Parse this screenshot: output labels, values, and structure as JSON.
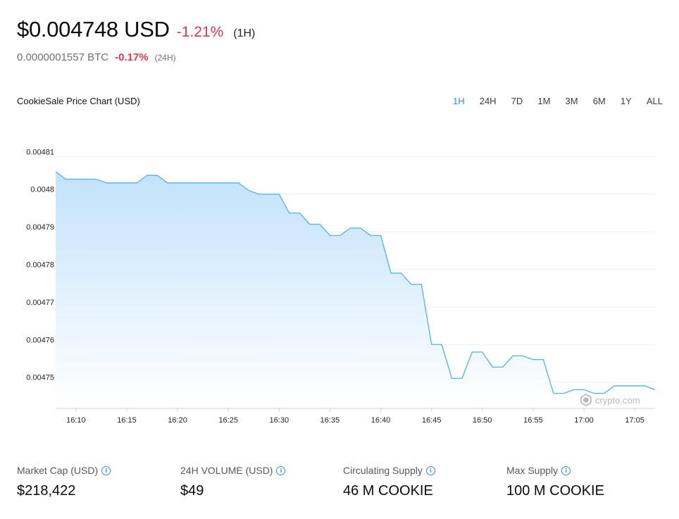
{
  "header": {
    "price_usd": "$0.004748 USD",
    "change_usd": "-1.21%",
    "period_usd": "(1H)",
    "price_btc": "0.0000001557 BTC",
    "change_btc": "-0.17%",
    "period_btc": "(24H)"
  },
  "chart_title": "CookieSale Price Chart (USD)",
  "range_tabs": [
    {
      "label": "1H",
      "active": true
    },
    {
      "label": "24H",
      "active": false
    },
    {
      "label": "7D",
      "active": false
    },
    {
      "label": "1M",
      "active": false
    },
    {
      "label": "3M",
      "active": false
    },
    {
      "label": "6M",
      "active": false
    },
    {
      "label": "1Y",
      "active": false
    },
    {
      "label": "ALL",
      "active": false
    }
  ],
  "watermark": "crypto.com",
  "colors": {
    "line": "#5ab4f2",
    "fill_top": "#c2e2fb",
    "negative": "#d63b4f",
    "active_tab": "#3a8bd6"
  },
  "chart_data": {
    "type": "area",
    "x_unit": "time (HH:MM)",
    "x_ticks": [
      "16:10",
      "16:15",
      "16:20",
      "16:25",
      "16:30",
      "16:35",
      "16:40",
      "16:45",
      "16:50",
      "16:55",
      "17:00",
      "17:05"
    ],
    "y_ticks": [
      "0.00481",
      "0.0048",
      "0.00479",
      "0.00478",
      "0.00477",
      "0.00476",
      "0.00475"
    ],
    "ylim": [
      0.004743,
      0.004811
    ],
    "xlim": [
      "16:08",
      "17:07"
    ],
    "grid": "horizontal",
    "series": [
      {
        "x": [
          "16:08",
          "16:09",
          "16:12",
          "16:13",
          "16:14",
          "16:15",
          "16:16",
          "16:17",
          "16:18",
          "16:19",
          "16:20",
          "16:21",
          "16:24",
          "16:25",
          "16:26",
          "16:27",
          "16:28",
          "16:30",
          "16:31",
          "16:32",
          "16:33",
          "16:34",
          "16:35",
          "16:36",
          "16:37",
          "16:38",
          "16:39",
          "16:40",
          "16:41",
          "16:42",
          "16:43",
          "16:44",
          "16:45",
          "16:46",
          "16:47",
          "16:48",
          "16:49",
          "16:50",
          "16:51",
          "16:52",
          "16:53",
          "16:54",
          "16:55",
          "16:56",
          "16:57",
          "16:58",
          "16:59",
          "17:00",
          "17:01",
          "17:02",
          "17:03",
          "17:04",
          "17:05",
          "17:06",
          "17:07"
        ],
        "y": [
          0.004806,
          0.004804,
          0.004804,
          0.004803,
          0.004803,
          0.004803,
          0.004803,
          0.004805,
          0.004805,
          0.004803,
          0.004803,
          0.004803,
          0.004803,
          0.004803,
          0.004803,
          0.004801,
          0.0048,
          0.0048,
          0.004795,
          0.004795,
          0.004792,
          0.004792,
          0.004789,
          0.004789,
          0.004791,
          0.004791,
          0.004789,
          0.004789,
          0.004779,
          0.004779,
          0.004776,
          0.004776,
          0.00476,
          0.00476,
          0.004751,
          0.004751,
          0.004758,
          0.004758,
          0.004754,
          0.004754,
          0.004757,
          0.004757,
          0.004756,
          0.004756,
          0.004747,
          0.004747,
          0.004748,
          0.004748,
          0.004747,
          0.004747,
          0.004749,
          0.004749,
          0.004749,
          0.004749,
          0.004748
        ]
      }
    ]
  },
  "stats": [
    {
      "label": "Market Cap (USD)",
      "value": "$218,422"
    },
    {
      "label": "24H VOLUME (USD)",
      "value": "$49"
    },
    {
      "label": "Circulating Supply",
      "value": "46 M COOKIE"
    },
    {
      "label": "Max Supply",
      "value": "100 M COOKIE"
    }
  ]
}
